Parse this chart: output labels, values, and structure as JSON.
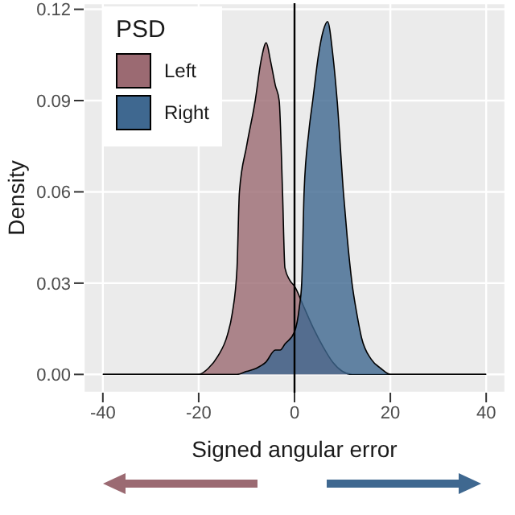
{
  "chart_data": {
    "type": "area",
    "xlabel": "Signed angular error",
    "ylabel": "Density",
    "legend_title": "PSD",
    "legend": "top left",
    "grid": true,
    "xlim": [
      -44,
      44
    ],
    "xticks": [
      -40,
      -20,
      0,
      20,
      40
    ],
    "ylim": [
      -0.006,
      0.122
    ],
    "yticks": [
      {
        "value": 0,
        "label": "0.00"
      },
      {
        "value": 0.03,
        "label": "0.03"
      },
      {
        "value": 0.06,
        "label": "0.06"
      },
      {
        "value": 0.09,
        "label": "0.09"
      },
      {
        "value": 0.12,
        "label": "0.12"
      }
    ],
    "ref_lines": [
      {
        "axis": "x",
        "value": 0,
        "label": null,
        "color": "#000000"
      }
    ],
    "series": [
      {
        "name": "Left",
        "color": "#9b6a72",
        "x": [
          -40,
          -20,
          -18,
          -16,
          -14,
          -13,
          -12,
          -11.5,
          -10,
          -8.2,
          -7,
          -5.9,
          -5,
          -4,
          -3.2,
          -2.5,
          -2,
          -1,
          0,
          2,
          4,
          6,
          8,
          10,
          12,
          40
        ],
        "values": [
          0,
          0,
          0.002,
          0.006,
          0.013,
          0.02,
          0.035,
          0.06,
          0.075,
          0.09,
          0.103,
          0.109,
          0.103,
          0.095,
          0.09,
          0.06,
          0.035,
          0.031,
          0.029,
          0.022,
          0.015,
          0.009,
          0.004,
          0.001,
          0,
          0
        ]
      },
      {
        "name": "Right",
        "color": "#3f6890",
        "x": [
          -40,
          -12,
          -10,
          -8,
          -6,
          -4,
          -3,
          -2,
          0,
          1,
          1.5,
          2,
          3,
          3.8,
          5,
          6,
          6.9,
          8,
          8.9,
          10.2,
          11,
          12,
          13,
          14,
          16,
          18,
          20,
          40
        ],
        "values": [
          0,
          0,
          0.001,
          0.002,
          0.004,
          0.008,
          0.008,
          0.01,
          0.014,
          0.022,
          0.03,
          0.06,
          0.08,
          0.09,
          0.105,
          0.113,
          0.116,
          0.105,
          0.09,
          0.06,
          0.045,
          0.03,
          0.02,
          0.012,
          0.005,
          0.002,
          0,
          0
        ]
      }
    ]
  }
}
